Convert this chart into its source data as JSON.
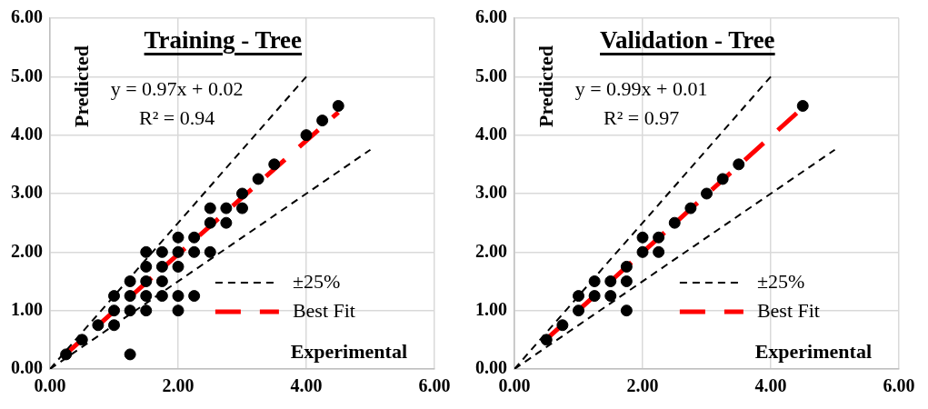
{
  "chart_data": [
    {
      "type": "scatter",
      "title": "Training - Tree",
      "xlabel": "Experimental",
      "ylabel": "Predicted",
      "annotations": [
        "y = 0.97x + 0.02",
        "R² = 0.94"
      ],
      "xlim": [
        0,
        6
      ],
      "ylim": [
        0,
        6
      ],
      "xticks": [
        {
          "value": 0,
          "label": "0.00"
        },
        {
          "value": 2,
          "label": "2.00"
        },
        {
          "value": 4,
          "label": "4.00"
        },
        {
          "value": 6,
          "label": "6.00"
        }
      ],
      "yticks": [
        {
          "value": 0,
          "label": "0.00"
        },
        {
          "value": 1,
          "label": "1.00"
        },
        {
          "value": 2,
          "label": "2.00"
        },
        {
          "value": 3,
          "label": "3.00"
        },
        {
          "value": 4,
          "label": "4.00"
        },
        {
          "value": 5,
          "label": "5.00"
        },
        {
          "value": 6,
          "label": "6.00"
        }
      ],
      "grid": true,
      "legend": "bottom right",
      "series": [
        {
          "type": "line",
          "name": "±25%",
          "color": "#000000",
          "marker": "none",
          "line_style": "dashed",
          "x": [
            0,
            4
          ],
          "values": [
            0,
            5
          ]
        },
        {
          "type": "line",
          "color": "#000000",
          "marker": "none",
          "line_style": "dashed",
          "x": [
            0,
            5
          ],
          "values": [
            0,
            3.75
          ]
        },
        {
          "type": "line",
          "name": "Best Fit",
          "color": "#ff0000",
          "marker": "none",
          "line_style": "dashed",
          "x": [
            0.25,
            4.5
          ],
          "values": [
            0.26,
            4.39
          ]
        },
        {
          "type": "scatter",
          "color": "#000000",
          "marker": "circle",
          "x": [
            0.25,
            0.5,
            0.75,
            1,
            1,
            1,
            1.25,
            1.25,
            1.25,
            1.25,
            1.5,
            1.5,
            1.5,
            1.5,
            1.5,
            1.75,
            1.75,
            1.75,
            1.75,
            2,
            2,
            2,
            2,
            2,
            2.25,
            2.25,
            2.25,
            2.5,
            2.5,
            2.5,
            2.75,
            2.75,
            3,
            3,
            3.25,
            3.5,
            4,
            4.25,
            4.5
          ],
          "values": [
            0.25,
            0.5,
            0.75,
            0.75,
            1,
            1.25,
            0.25,
            1,
            1.25,
            1.5,
            1,
            1.25,
            1.5,
            1.75,
            2,
            1.25,
            1.5,
            1.75,
            2,
            1,
            1.25,
            1.75,
            2,
            2.25,
            1.25,
            2,
            2.25,
            2,
            2.5,
            2.75,
            2.5,
            2.75,
            2.75,
            3,
            3.25,
            3.5,
            4,
            4.25,
            4.5
          ]
        }
      ]
    },
    {
      "type": "scatter",
      "title": "Validation - Tree",
      "xlabel": "Experimental",
      "ylabel": "Predicted",
      "annotations": [
        "y = 0.99x + 0.01",
        "R² = 0.97"
      ],
      "xlim": [
        0,
        6
      ],
      "ylim": [
        0,
        6
      ],
      "xticks": [
        {
          "value": 0,
          "label": "0.00"
        },
        {
          "value": 2,
          "label": "2.00"
        },
        {
          "value": 4,
          "label": "4.00"
        },
        {
          "value": 6,
          "label": "6.00"
        }
      ],
      "yticks": [
        {
          "value": 0,
          "label": "0.00"
        },
        {
          "value": 1,
          "label": "1.00"
        },
        {
          "value": 2,
          "label": "2.00"
        },
        {
          "value": 3,
          "label": "3.00"
        },
        {
          "value": 4,
          "label": "4.00"
        },
        {
          "value": 5,
          "label": "5.00"
        },
        {
          "value": 6,
          "label": "6.00"
        }
      ],
      "grid": true,
      "legend": "bottom right",
      "series": [
        {
          "type": "line",
          "name": "±25%",
          "color": "#000000",
          "marker": "none",
          "line_style": "dashed",
          "x": [
            0,
            4
          ],
          "values": [
            0,
            5
          ]
        },
        {
          "type": "line",
          "color": "#000000",
          "marker": "none",
          "line_style": "dashed",
          "x": [
            0,
            5
          ],
          "values": [
            0,
            3.75
          ]
        },
        {
          "type": "line",
          "name": "Best Fit",
          "color": "#ff0000",
          "marker": "none",
          "line_style": "dashed",
          "x": [
            0.5,
            4.5
          ],
          "values": [
            0.51,
            4.47
          ]
        },
        {
          "type": "scatter",
          "color": "#000000",
          "marker": "circle",
          "x": [
            0.5,
            0.75,
            1,
            1,
            1.25,
            1.25,
            1.5,
            1.5,
            1.75,
            1.75,
            1.75,
            2,
            2,
            2.25,
            2.25,
            2.5,
            2.75,
            3,
            3.25,
            3.5,
            4.5
          ],
          "values": [
            0.5,
            0.75,
            1,
            1.25,
            1.25,
            1.5,
            1.5,
            1.25,
            1.5,
            1.75,
            1,
            2,
            2.25,
            2.25,
            2,
            2.5,
            2.75,
            3,
            3.25,
            3.5,
            4.5
          ]
        }
      ]
    }
  ]
}
